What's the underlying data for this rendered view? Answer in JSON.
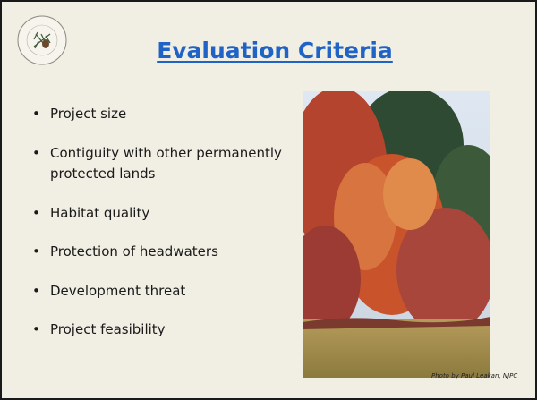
{
  "slide": {
    "title": "Evaluation Criteria",
    "bullets": [
      "Project size",
      "Contiguity with other permanently protected lands",
      "Habitat quality",
      "Protection of headwaters",
      "Development threat",
      "Project feasibility"
    ],
    "photo_credit": "Photo by Paul Leakan, NJPC"
  }
}
